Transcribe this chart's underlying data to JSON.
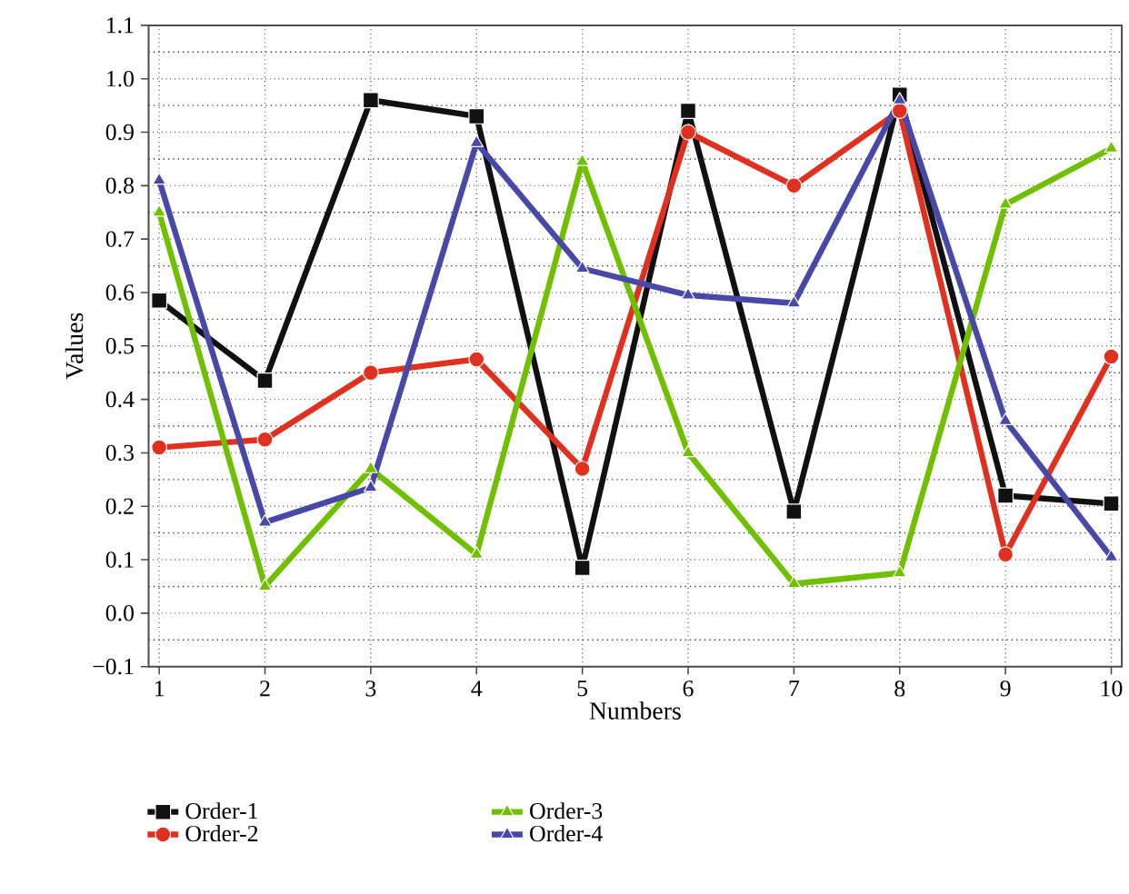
{
  "chart_data": {
    "type": "line",
    "xlabel": "Numbers",
    "ylabel": "Values",
    "x": [
      1,
      2,
      3,
      4,
      5,
      6,
      7,
      8,
      9,
      10
    ],
    "series": [
      {
        "name": "Order-1",
        "color": "#111111",
        "marker": "square",
        "values": [
          0.585,
          0.435,
          0.96,
          0.93,
          0.085,
          0.94,
          0.19,
          0.97,
          0.22,
          0.205
        ]
      },
      {
        "name": "Order-2",
        "color": "#e03020",
        "marker": "circle",
        "values": [
          0.31,
          0.325,
          0.45,
          0.475,
          0.27,
          0.9,
          0.8,
          0.94,
          0.11,
          0.48
        ]
      },
      {
        "name": "Order-3",
        "color": "#70c000",
        "marker": "triangle",
        "values": [
          0.75,
          0.05,
          0.27,
          0.11,
          0.845,
          0.3,
          0.055,
          0.075,
          0.765,
          0.87
        ]
      },
      {
        "name": "Order-4",
        "color": "#4848a8",
        "marker": "triangle",
        "values": [
          0.81,
          0.17,
          0.235,
          0.88,
          0.645,
          0.595,
          0.58,
          0.96,
          0.36,
          0.105
        ]
      }
    ],
    "xlim": [
      0.9,
      10.1
    ],
    "ylim": [
      -0.1,
      1.1
    ],
    "xticks": [
      1,
      2,
      3,
      4,
      5,
      6,
      7,
      8,
      9,
      10
    ],
    "yticks": [
      {
        "value": -0.1,
        "label": "−0.1"
      },
      {
        "value": 0,
        "label": "0.0"
      },
      0.1,
      0.2,
      0.3,
      0.4,
      0.5,
      0.6,
      0.7,
      0.8,
      0.9,
      {
        "value": 1,
        "label": "1.0"
      },
      1.1
    ],
    "grid": true,
    "legend": "bottom",
    "line_style": "solid"
  }
}
